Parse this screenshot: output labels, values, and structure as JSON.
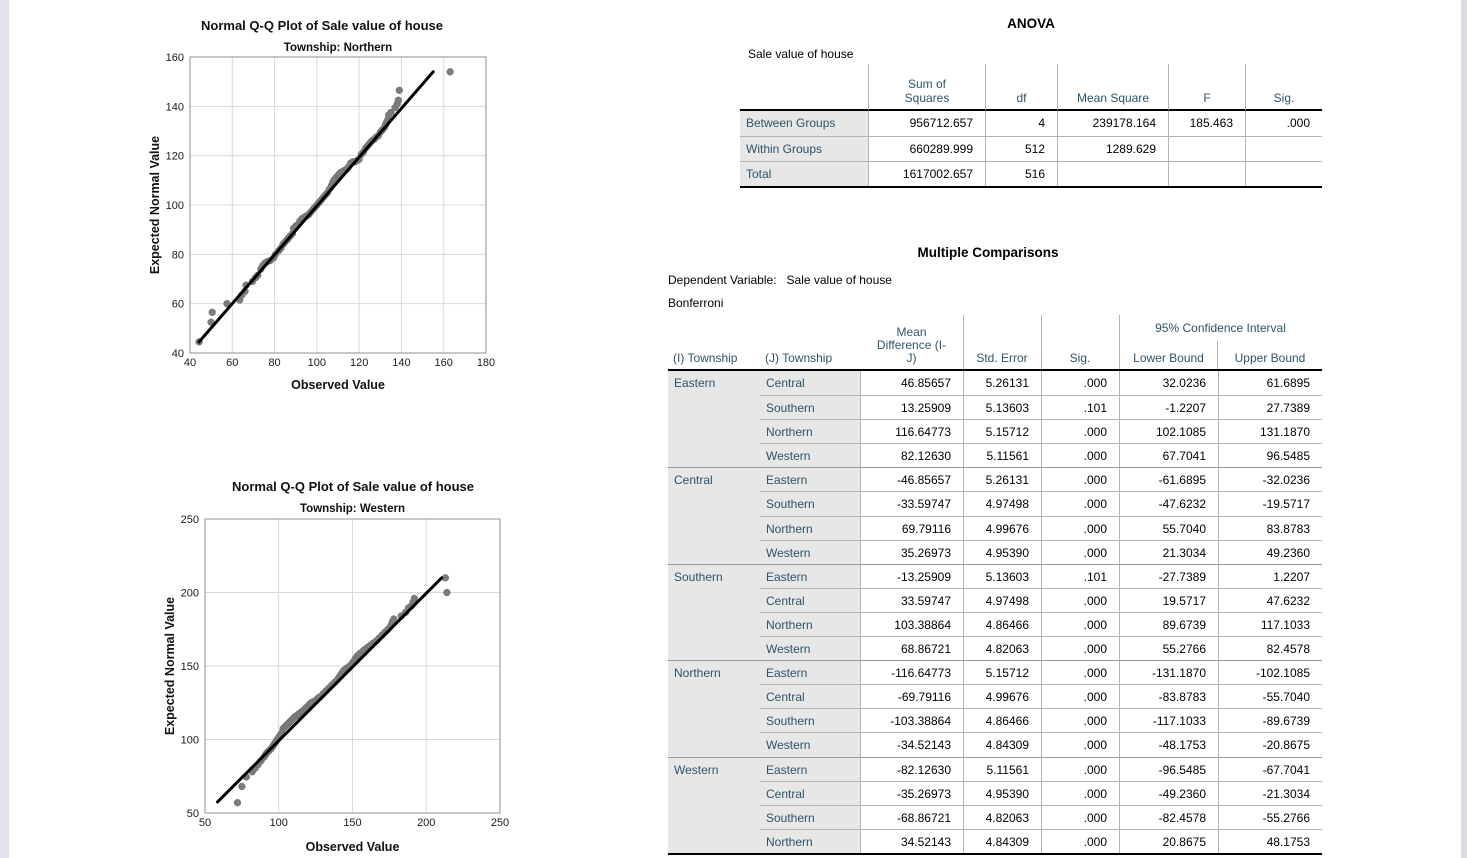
{
  "page": {
    "background": "#ffffff",
    "left_gutter_color": "#e3e4e9",
    "right_gutter_color": "#dcdce0",
    "accent_label_color": "#2d5468",
    "row_label_bg": "#e7e7e7"
  },
  "chart_data": [
    {
      "type": "scatter",
      "title": "Normal Q-Q Plot of Sale value of house",
      "subtitle": "Township: Northern",
      "xlabel": "Observed Value",
      "ylabel": "Expected Normal Value",
      "xlim": [
        40,
        180
      ],
      "ylim": [
        40,
        160
      ],
      "xticks": [
        40,
        60,
        80,
        100,
        120,
        140,
        160,
        180
      ],
      "yticks": [
        40,
        60,
        80,
        100,
        120,
        140,
        160
      ],
      "grid": true,
      "legend": "none",
      "fit_line": {
        "x": [
          44.3,
          155
        ],
        "y": [
          44.5,
          154
        ]
      },
      "point_color": "#7c7c7c",
      "line_color": "#000000",
      "points": [
        [
          44.3,
          44.5
        ],
        [
          50,
          52.5
        ],
        [
          50.5,
          56.5
        ],
        [
          57.5,
          60
        ],
        [
          63.5,
          61.5
        ],
        [
          64.5,
          63.5
        ],
        [
          66,
          65
        ],
        [
          66.5,
          67.5
        ],
        [
          69.5,
          69
        ],
        [
          71,
          70.5
        ],
        [
          72,
          71.5
        ],
        [
          73.5,
          74
        ],
        [
          74.5,
          75.5
        ],
        [
          75.5,
          76.5
        ],
        [
          76.5,
          77
        ],
        [
          78,
          77.5
        ],
        [
          79.5,
          78.5
        ],
        [
          80.5,
          80
        ],
        [
          82,
          81.5
        ],
        [
          83,
          82.5
        ],
        [
          84,
          84
        ],
        [
          85,
          85
        ],
        [
          86,
          86
        ],
        [
          86.5,
          86.5
        ],
        [
          87.5,
          87.5
        ],
        [
          88.5,
          88.5
        ],
        [
          89,
          90.5
        ],
        [
          90,
          91.5
        ],
        [
          91,
          92
        ],
        [
          92,
          93.5
        ],
        [
          93,
          94.5
        ],
        [
          94,
          95
        ],
        [
          95,
          95.5
        ],
        [
          96,
          96
        ],
        [
          97,
          97
        ],
        [
          98,
          98
        ],
        [
          99,
          99
        ],
        [
          100,
          100
        ],
        [
          101,
          101
        ],
        [
          102,
          102
        ],
        [
          103,
          103
        ],
        [
          104,
          104
        ],
        [
          105,
          105
        ],
        [
          106,
          106.5
        ],
        [
          107,
          108
        ],
        [
          107.5,
          109
        ],
        [
          108,
          110
        ],
        [
          109,
          111
        ],
        [
          110,
          112
        ],
        [
          110.5,
          112.5
        ],
        [
          111,
          113
        ],
        [
          112,
          113.5
        ],
        [
          113,
          114
        ],
        [
          114,
          114.5
        ],
        [
          115,
          115.5
        ],
        [
          116,
          117
        ],
        [
          117,
          117.5
        ],
        [
          118,
          117.5
        ],
        [
          119,
          118
        ],
        [
          120,
          118.5
        ],
        [
          121,
          120.5
        ],
        [
          122,
          121.5
        ],
        [
          123,
          123
        ],
        [
          124,
          124
        ],
        [
          125,
          125
        ],
        [
          126,
          126
        ],
        [
          127,
          126.5
        ],
        [
          128,
          127.5
        ],
        [
          129,
          128
        ],
        [
          130,
          129.5
        ],
        [
          131,
          130.5
        ],
        [
          132,
          131.5
        ],
        [
          132.5,
          132.5
        ],
        [
          133,
          133.5
        ],
        [
          133.5,
          134.5
        ],
        [
          134,
          136.5
        ],
        [
          135,
          137.5
        ],
        [
          137,
          139.5
        ],
        [
          138,
          141
        ],
        [
          138.5,
          142.5
        ],
        [
          139,
          146.5
        ],
        [
          163,
          154
        ]
      ]
    },
    {
      "type": "scatter",
      "title": "Normal Q-Q Plot of Sale value of house",
      "subtitle": "Township: Western",
      "xlabel": "Observed Value",
      "ylabel": "Expected Normal Value",
      "xlim": [
        50,
        250
      ],
      "ylim": [
        50,
        250
      ],
      "xticks": [
        50,
        100,
        150,
        200,
        250
      ],
      "yticks": [
        50,
        100,
        150,
        200,
        250
      ],
      "grid": true,
      "legend": "none",
      "fit_line": {
        "x": [
          58.5,
          210.5
        ],
        "y": [
          57.5,
          210
        ]
      },
      "point_color": "#7c7c7c",
      "line_color": "#000000",
      "points": [
        [
          72,
          57
        ],
        [
          75,
          68
        ],
        [
          78,
          74.5
        ],
        [
          82,
          78
        ],
        [
          84,
          80.5
        ],
        [
          86,
          83
        ],
        [
          88,
          85.5
        ],
        [
          90,
          88
        ],
        [
          91,
          89.5
        ],
        [
          92,
          91
        ],
        [
          93,
          92
        ],
        [
          94,
          93
        ],
        [
          95,
          94
        ],
        [
          96,
          95.5
        ],
        [
          97,
          97
        ],
        [
          98,
          98.5
        ],
        [
          99,
          100
        ],
        [
          100,
          101.5
        ],
        [
          101,
          103
        ],
        [
          102,
          104.5
        ],
        [
          103,
          107.5
        ],
        [
          104,
          108.5
        ],
        [
          105,
          109.5
        ],
        [
          106,
          110.5
        ],
        [
          107,
          111.5
        ],
        [
          108,
          112.5
        ],
        [
          109,
          113.5
        ],
        [
          110,
          114.5
        ],
        [
          111,
          115.5
        ],
        [
          112,
          116
        ],
        [
          113,
          117
        ],
        [
          114,
          117.5
        ],
        [
          115,
          118.5
        ],
        [
          116,
          119
        ],
        [
          117,
          120
        ],
        [
          118,
          121
        ],
        [
          119,
          122
        ],
        [
          120,
          123
        ],
        [
          121,
          124
        ],
        [
          122,
          125
        ],
        [
          123,
          125.5
        ],
        [
          125,
          126.5
        ],
        [
          126,
          127.5
        ],
        [
          127,
          128.5
        ],
        [
          128,
          129
        ],
        [
          130,
          131
        ],
        [
          132,
          133
        ],
        [
          134,
          135
        ],
        [
          136,
          137
        ],
        [
          138,
          139
        ],
        [
          140,
          141
        ],
        [
          141,
          142.5
        ],
        [
          142,
          144
        ],
        [
          143,
          145.5
        ],
        [
          144,
          147
        ],
        [
          146,
          148.5
        ],
        [
          148,
          150
        ],
        [
          150,
          152
        ],
        [
          151,
          153.5
        ],
        [
          152,
          155
        ],
        [
          153,
          156.5
        ],
        [
          154,
          157.5
        ],
        [
          155,
          158.5
        ],
        [
          157,
          160
        ],
        [
          158,
          161
        ],
        [
          160,
          162.5
        ],
        [
          162,
          164
        ],
        [
          164,
          165.5
        ],
        [
          166,
          167
        ],
        [
          168,
          169
        ],
        [
          170,
          171
        ],
        [
          172,
          173
        ],
        [
          174,
          175
        ],
        [
          176,
          177.5
        ],
        [
          177,
          180
        ],
        [
          178,
          182
        ],
        [
          183,
          184
        ],
        [
          186,
          186.5
        ],
        [
          188,
          189.5
        ],
        [
          190,
          191
        ],
        [
          191,
          193.5
        ],
        [
          192,
          196
        ],
        [
          213,
          210
        ],
        [
          214,
          200
        ]
      ]
    }
  ],
  "anova": {
    "title": "ANOVA",
    "caption": "Sale value of house",
    "columns": [
      "",
      "Sum of\nSquares",
      "df",
      "Mean Square",
      "F",
      "Sig."
    ],
    "rows": [
      {
        "label": "Between Groups",
        "cells": [
          "956712.657",
          "4",
          "239178.164",
          "185.463",
          ".000"
        ]
      },
      {
        "label": "Within Groups",
        "cells": [
          "660289.999",
          "512",
          "1289.629",
          "",
          ""
        ]
      },
      {
        "label": "Total",
        "cells": [
          "1617002.657",
          "516",
          "",
          "",
          ""
        ]
      }
    ]
  },
  "multiple_comparisons": {
    "title": "Multiple Comparisons",
    "dependent_variable_line": "Dependent Variable:   Sale value of house",
    "method": "Bonferroni",
    "headers": {
      "i": "(I) Township",
      "j": "(J) Township",
      "mean_diff": "Mean\nDifference (I-\nJ)",
      "std_error": "Std. Error",
      "sig": "Sig.",
      "ci_span": "95% Confidence Interval",
      "lower": "Lower Bound",
      "upper": "Upper Bound"
    },
    "blocks": [
      {
        "i": "Eastern",
        "rows": [
          [
            "Central",
            "46.85657",
            "5.26131",
            ".000",
            "32.0236",
            "61.6895"
          ],
          [
            "Southern",
            "13.25909",
            "5.13603",
            ".101",
            "-1.2207",
            "27.7389"
          ],
          [
            "Northern",
            "116.64773",
            "5.15712",
            ".000",
            "102.1085",
            "131.1870"
          ],
          [
            "Western",
            "82.12630",
            "5.11561",
            ".000",
            "67.7041",
            "96.5485"
          ]
        ]
      },
      {
        "i": "Central",
        "rows": [
          [
            "Eastern",
            "-46.85657",
            "5.26131",
            ".000",
            "-61.6895",
            "-32.0236"
          ],
          [
            "Southern",
            "-33.59747",
            "4.97498",
            ".000",
            "-47.6232",
            "-19.5717"
          ],
          [
            "Northern",
            "69.79116",
            "4.99676",
            ".000",
            "55.7040",
            "83.8783"
          ],
          [
            "Western",
            "35.26973",
            "4.95390",
            ".000",
            "21.3034",
            "49.2360"
          ]
        ]
      },
      {
        "i": "Southern",
        "rows": [
          [
            "Eastern",
            "-13.25909",
            "5.13603",
            ".101",
            "-27.7389",
            "1.2207"
          ],
          [
            "Central",
            "33.59747",
            "4.97498",
            ".000",
            "19.5717",
            "47.6232"
          ],
          [
            "Northern",
            "103.38864",
            "4.86466",
            ".000",
            "89.6739",
            "117.1033"
          ],
          [
            "Western",
            "68.86721",
            "4.82063",
            ".000",
            "55.2766",
            "82.4578"
          ]
        ]
      },
      {
        "i": "Northern",
        "rows": [
          [
            "Eastern",
            "-116.64773",
            "5.15712",
            ".000",
            "-131.1870",
            "-102.1085"
          ],
          [
            "Central",
            "-69.79116",
            "4.99676",
            ".000",
            "-83.8783",
            "-55.7040"
          ],
          [
            "Southern",
            "-103.38864",
            "4.86466",
            ".000",
            "-117.1033",
            "-89.6739"
          ],
          [
            "Western",
            "-34.52143",
            "4.84309",
            ".000",
            "-48.1753",
            "-20.8675"
          ]
        ]
      },
      {
        "i": "Western",
        "rows": [
          [
            "Eastern",
            "-82.12630",
            "5.11561",
            ".000",
            "-96.5485",
            "-67.7041"
          ],
          [
            "Central",
            "-35.26973",
            "4.95390",
            ".000",
            "-49.2360",
            "-21.3034"
          ],
          [
            "Southern",
            "-68.86721",
            "4.82063",
            ".000",
            "-82.4578",
            "-55.2766"
          ],
          [
            "Northern",
            "34.52143",
            "4.84309",
            ".000",
            "20.8675",
            "48.1753"
          ]
        ]
      }
    ]
  }
}
